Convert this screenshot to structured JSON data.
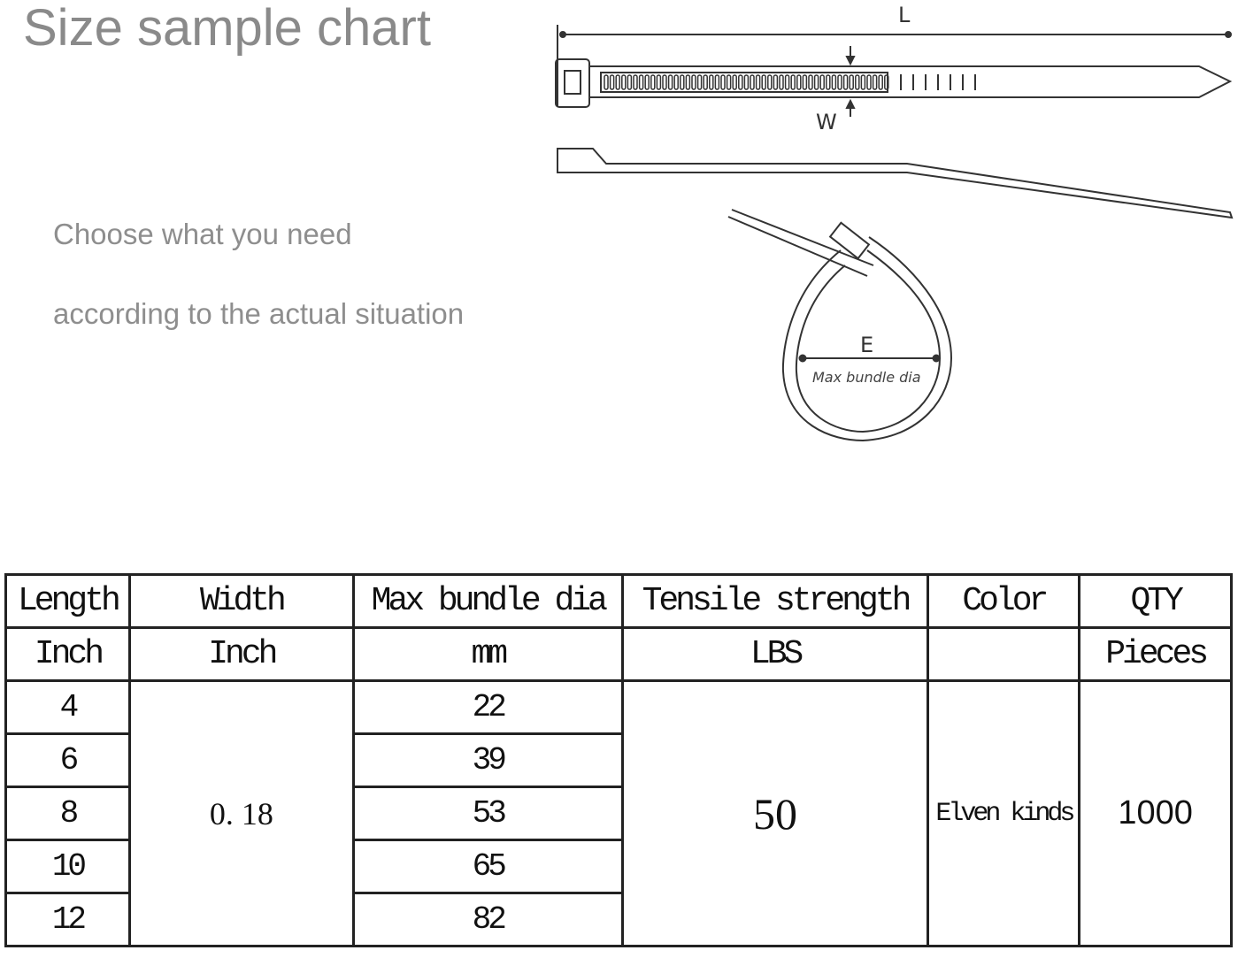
{
  "title": "Size sample chart",
  "subtitle_lines": [
    "Choose what you need",
    "according to the actual situation"
  ],
  "diagram": {
    "length_label": "L",
    "width_label": "W",
    "diameter_label": "E",
    "diameter_caption": "Max bundle dia"
  },
  "table": {
    "headers": [
      "Length",
      "Width",
      "Max bundle dia",
      "Tensile strength",
      "Color",
      "QTY"
    ],
    "units": [
      "Inch",
      "Inch",
      "mm",
      "LBS",
      "",
      "Pieces"
    ],
    "lengths": [
      "4",
      "6",
      "8",
      "10",
      "12"
    ],
    "width": "0. 18",
    "max_bundle_dia": [
      "22",
      "39",
      "53",
      "65",
      "82"
    ],
    "tensile_strength": "50",
    "color": "Elven kinds",
    "qty": "1000"
  }
}
